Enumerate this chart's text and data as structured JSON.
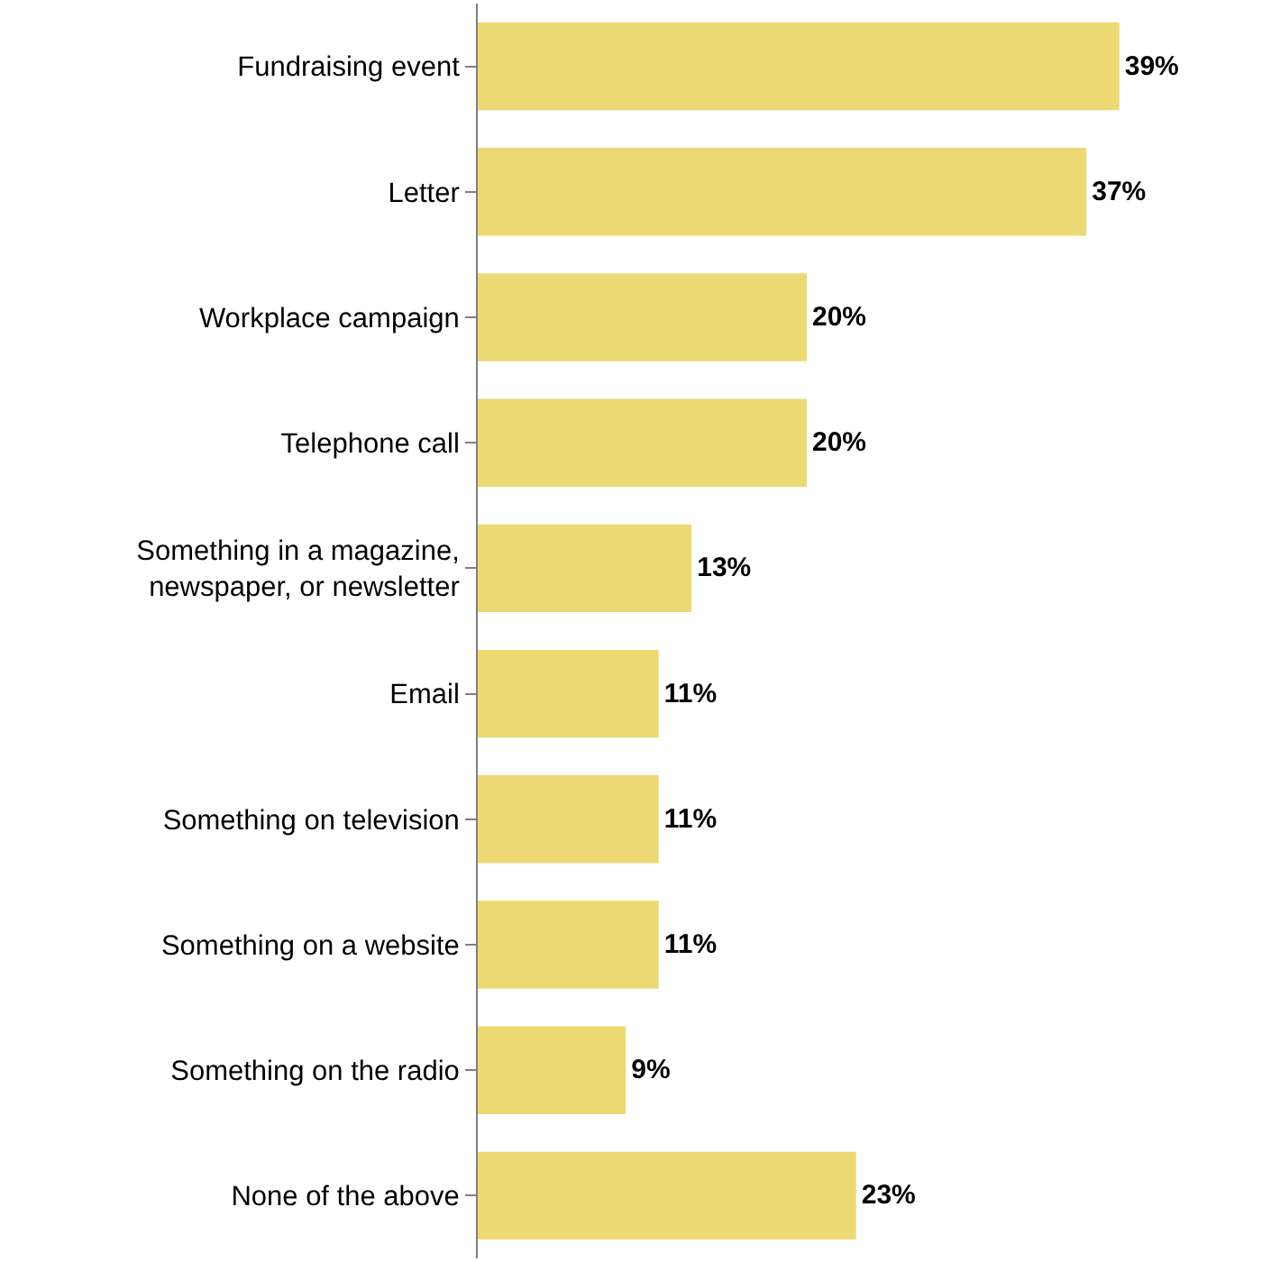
{
  "chart_data": {
    "type": "bar",
    "orientation": "horizontal",
    "categories": [
      "Fundraising event",
      "Letter",
      "Workplace campaign",
      "Telephone call",
      "Something in a magazine,\nnewspaper, or newsletter",
      "Email",
      "Something on television",
      "Something on a website",
      "Something on the radio",
      "None of the above"
    ],
    "values": [
      39,
      37,
      20,
      20,
      13,
      11,
      11,
      11,
      9,
      23
    ],
    "value_labels": [
      "39%",
      "37%",
      "20%",
      "20%",
      "13%",
      "11%",
      "11%",
      "11%",
      "9%",
      "23%"
    ],
    "color": "#ecd974"
  }
}
